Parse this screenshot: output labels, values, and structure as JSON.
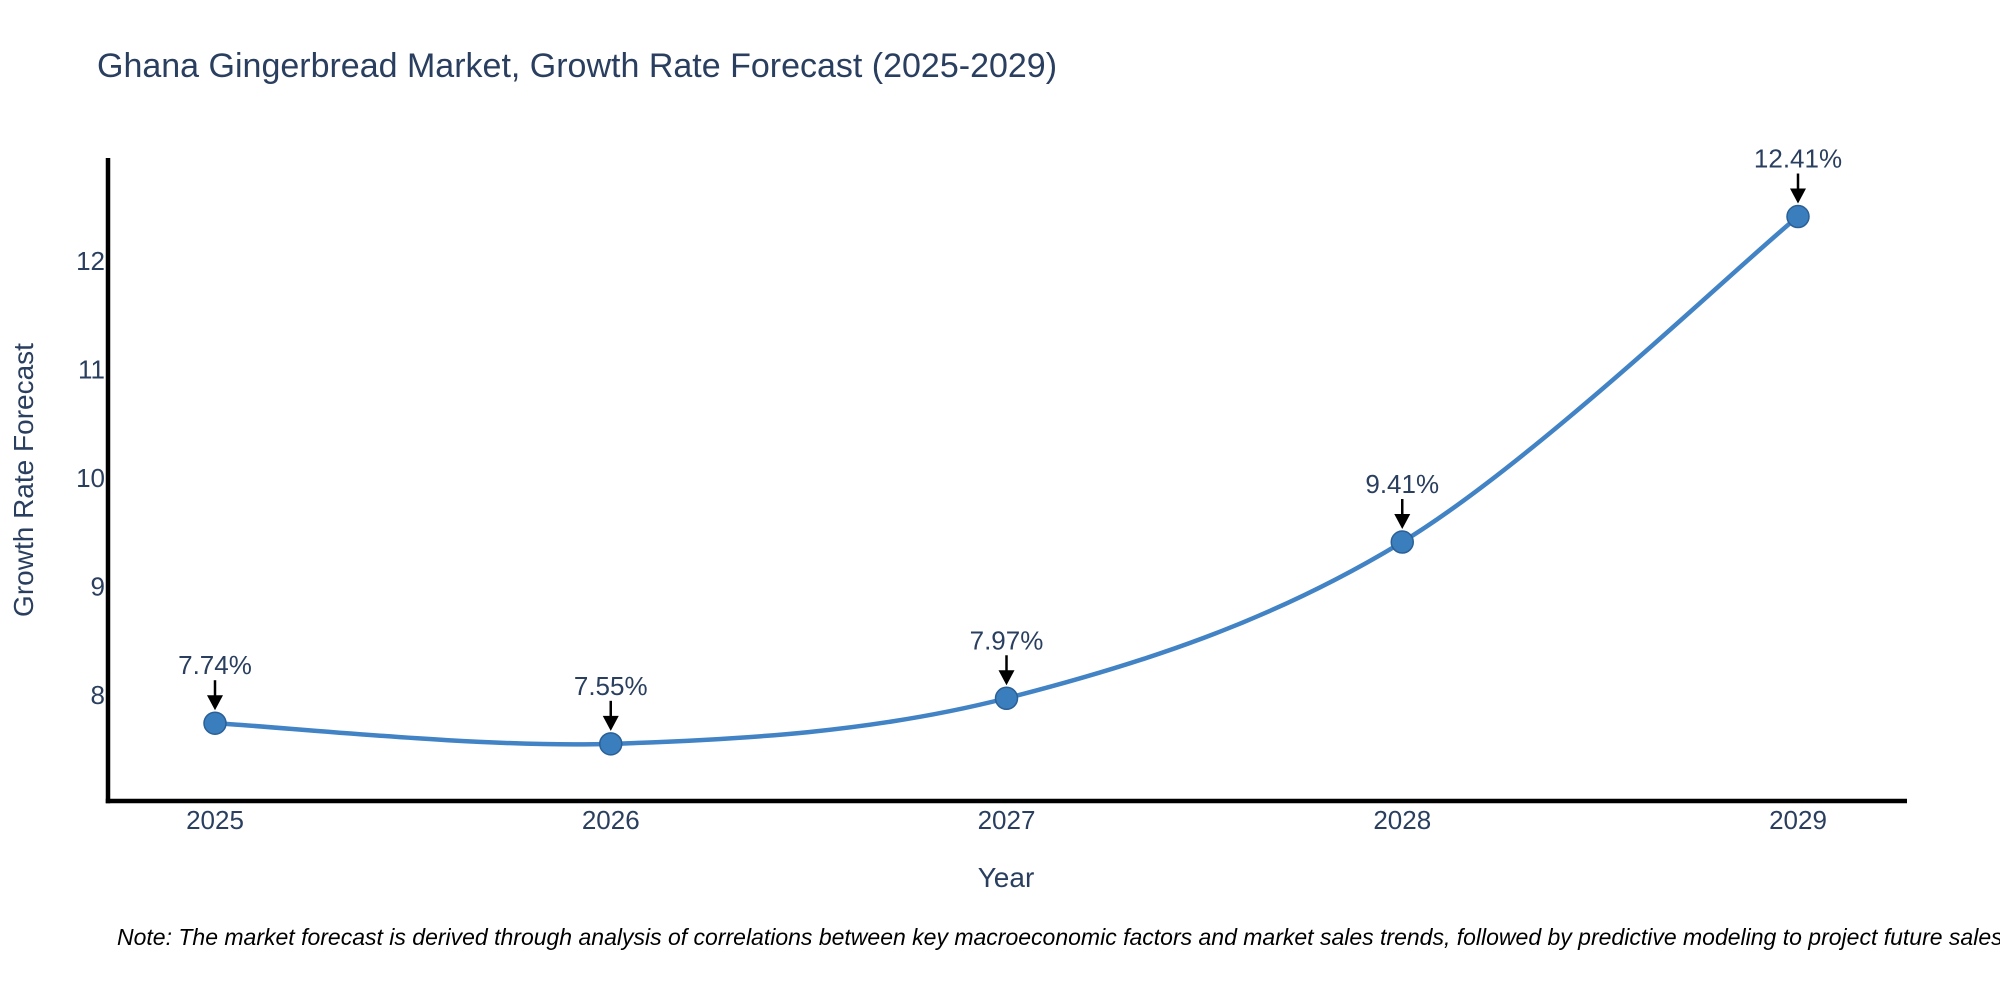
{
  "title": "Ghana Gingerbread Market, Growth Rate Forecast (2025-2029)",
  "note": "Note: The market forecast is derived through analysis of correlations between key macroeconomic factors and market sales trends, followed by predictive modeling to project future sales",
  "chart_data": {
    "type": "line",
    "line_shape": "spline",
    "title": "Ghana Gingerbread Market, Growth Rate Forecast (2025-2029)",
    "xlabel": "Year",
    "ylabel": "Growth Rate Forecast",
    "x": [
      2025,
      2026,
      2027,
      2028,
      2029
    ],
    "x_ticks": [
      "2025",
      "2026",
      "2027",
      "2028",
      "2029"
    ],
    "y_ticks": [
      8,
      9,
      10,
      11,
      12
    ],
    "ylim": [
      7.02,
      12.95
    ],
    "grid": false,
    "legend": false,
    "markers": true,
    "series": [
      {
        "name": "Growth Rate Forecast",
        "values": [
          7.74,
          7.55,
          7.97,
          9.41,
          12.41
        ],
        "point_labels": [
          "7.74%",
          "7.55%",
          "7.97%",
          "9.41%",
          "12.41%"
        ]
      }
    ],
    "annotations_have_arrows": true,
    "colors": {
      "line": "#4183c4",
      "marker": "#3a7ebd",
      "marker_edge": "#2a6096",
      "text": "#2a3f5f",
      "axis": "#000000",
      "arrow": "#000000",
      "note": "#000000",
      "background": "#ffffff"
    }
  }
}
